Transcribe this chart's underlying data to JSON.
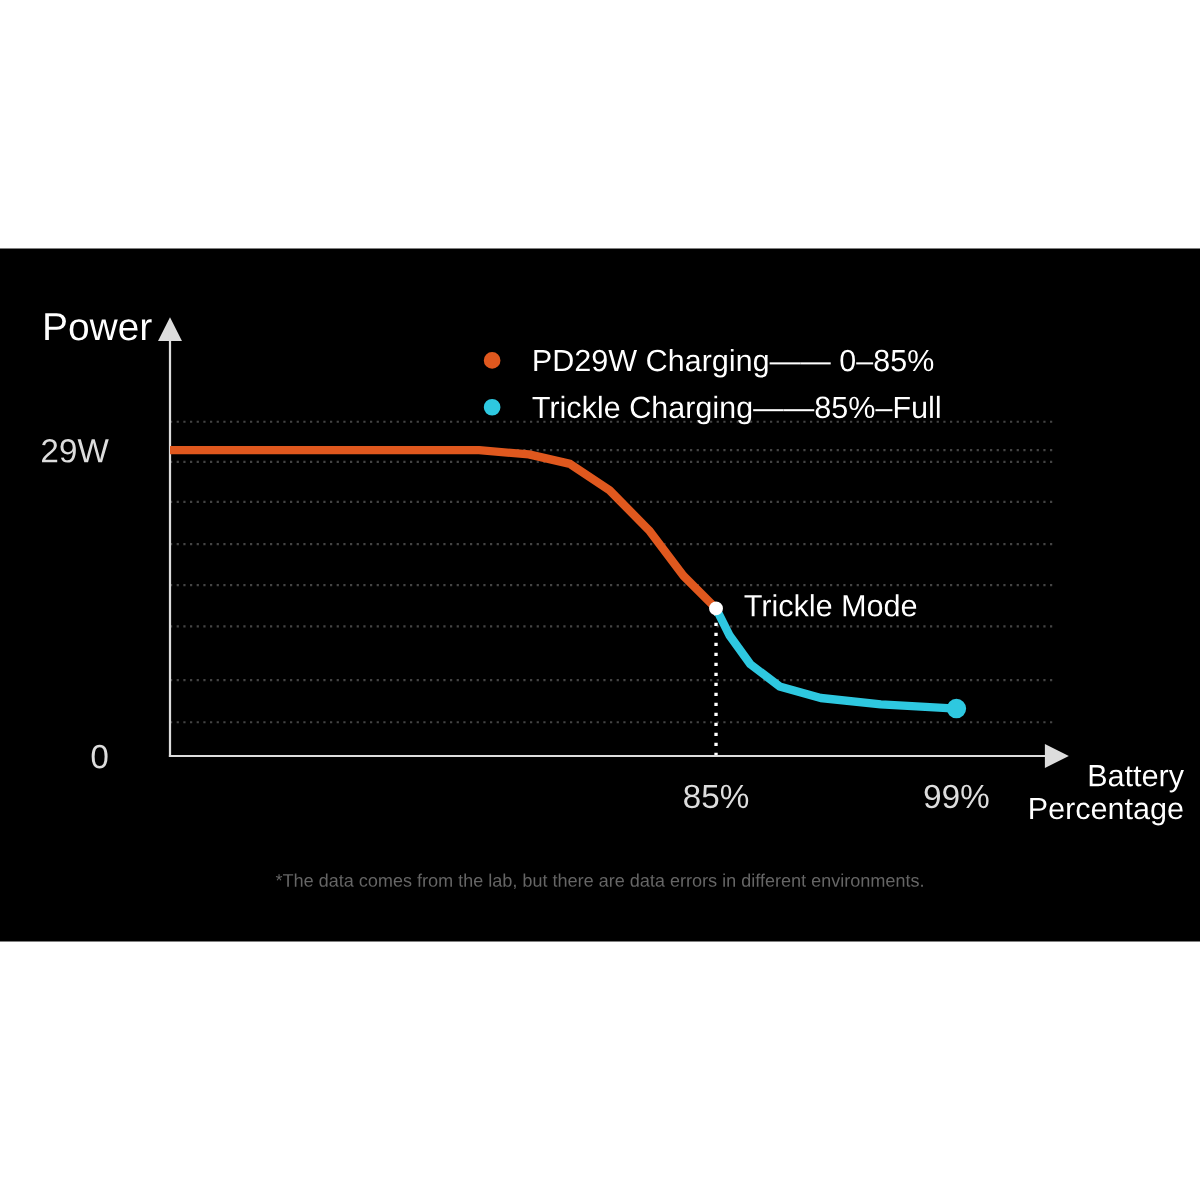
{
  "chart_data": {
    "type": "line",
    "ylabel": "Power",
    "xlabel": "Battery\nPercentage",
    "series": [
      {
        "name": "PD29W Charging—— 0–85%",
        "color": "#e0581e",
        "x": [
          53.2,
          71.2,
          74.1,
          76.5,
          78.8,
          81.1,
          83.1,
          85
        ],
        "values": [
          29,
          29,
          28.6,
          27.7,
          25.2,
          21.4,
          17.1,
          14.0
        ]
      },
      {
        "name": "Trickle Charging——85%–Full",
        "color": "#2ec8e0",
        "x": [
          85,
          85.8,
          87,
          88.7,
          91.1,
          94.6,
          99
        ],
        "values": [
          14.0,
          11.4,
          8.7,
          6.6,
          5.5,
          4.9,
          4.5
        ]
      }
    ],
    "xlim": [
      53.2,
      104.8
    ],
    "ylim": [
      0,
      40.4
    ],
    "xticks": [
      {
        "value": 85,
        "label": "85%"
      },
      {
        "value": 99,
        "label": "99%"
      }
    ],
    "yticks": [
      0,
      {
        "value": 3.2,
        "label": null
      },
      {
        "value": 7.2,
        "label": null
      },
      {
        "value": 12.3,
        "label": null
      },
      {
        "value": 16.2,
        "label": null
      },
      {
        "value": 20.1,
        "label": null
      },
      {
        "value": 24.1,
        "label": null
      },
      {
        "value": 27.9,
        "label": null
      },
      {
        "value": 29,
        "label": "29W"
      },
      {
        "value": 31.7,
        "label": null
      }
    ],
    "grid": "y",
    "legend": "top",
    "annotations": [
      {
        "text": "Trickle Mode",
        "x": 85,
        "y": 14.0
      },
      "*The data comes from the lab, but there are data errors in different environments."
    ]
  }
}
